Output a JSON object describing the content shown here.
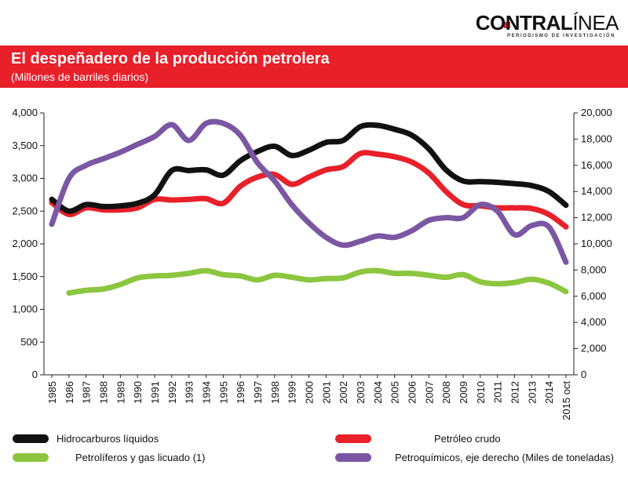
{
  "brand": {
    "name_bold": "CONTRAL",
    "name_light": "ÍNEA",
    "tagline": "PERIODISMO DE INVESTIGACIÓN",
    "accent": "#e8202a"
  },
  "header": {
    "title": "El despeñadero de la producción petrolera",
    "subtitle": "(Millones de barriles diarios)"
  },
  "chart_data": {
    "type": "line",
    "title": "El despeñadero de la producción petrolera",
    "subtitle": "(Millones de barriles diarios)",
    "categories": [
      "1985",
      "1986",
      "1987",
      "1988",
      "1989",
      "1990",
      "1991",
      "1992",
      "1993",
      "1994",
      "1995",
      "1996",
      "1997",
      "1998",
      "1999",
      "2000",
      "2001",
      "2002",
      "2003",
      "2004",
      "2005",
      "2006",
      "2007",
      "2008",
      "2009",
      "2010",
      "2011",
      "2012",
      "2013",
      "2014",
      "2015 oct"
    ],
    "y_left": {
      "min": 0,
      "max": 4000,
      "ticks": [
        "0",
        "500",
        "1,000",
        "1,500",
        "2,000",
        "2,500",
        "3,000",
        "3,500",
        "4,000"
      ]
    },
    "y_right": {
      "min": 0,
      "max": 20000,
      "ticks": [
        "0",
        "2,000",
        "4,000",
        "6,000",
        "8,000",
        "10,000",
        "12,000",
        "14,000",
        "16,000",
        "18,000",
        "20,000"
      ]
    },
    "grid": false,
    "legend_position": "bottom",
    "series": [
      {
        "name": "Hidrocarburos líquidos",
        "color": "#111111",
        "axis": "left",
        "values": [
          2680,
          2500,
          2600,
          2570,
          2580,
          2620,
          2750,
          3120,
          3120,
          3130,
          3050,
          3270,
          3410,
          3490,
          3350,
          3430,
          3550,
          3580,
          3790,
          3810,
          3750,
          3660,
          3450,
          3130,
          2960,
          2950,
          2940,
          2920,
          2890,
          2800,
          2590
        ]
      },
      {
        "name": "Petróleo crudo",
        "color": "#e8202a",
        "axis": "left",
        "values": [
          2630,
          2450,
          2550,
          2520,
          2520,
          2550,
          2680,
          2670,
          2680,
          2690,
          2620,
          2880,
          3020,
          3060,
          2910,
          3020,
          3130,
          3180,
          3380,
          3370,
          3330,
          3250,
          3080,
          2800,
          2600,
          2580,
          2550,
          2550,
          2540,
          2450,
          2260
        ]
      },
      {
        "name": "Petrolíferos y gas licuado (1)",
        "color": "#8cc63f",
        "axis": "left",
        "values": [
          null,
          1250,
          1290,
          1310,
          1380,
          1480,
          1510,
          1520,
          1550,
          1590,
          1530,
          1510,
          1450,
          1520,
          1490,
          1450,
          1470,
          1480,
          1570,
          1590,
          1550,
          1550,
          1520,
          1490,
          1530,
          1420,
          1390,
          1410,
          1460,
          1400,
          1270
        ]
      },
      {
        "name": "Petroquímicos, eje derecho (Miles de toneladas)",
        "color": "#7b57a3",
        "axis": "right",
        "values": [
          11500,
          15000,
          16000,
          16500,
          17000,
          17600,
          18200,
          19100,
          17900,
          19200,
          19200,
          18300,
          16200,
          14800,
          13000,
          11600,
          10500,
          9900,
          10200,
          10600,
          10500,
          11000,
          11800,
          12000,
          12000,
          13000,
          12500,
          10700,
          11400,
          11300,
          8600
        ]
      }
    ]
  }
}
